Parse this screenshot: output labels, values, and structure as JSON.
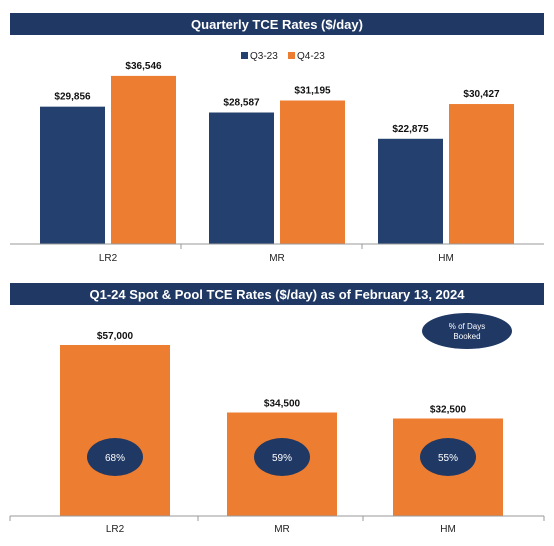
{
  "chart_data": [
    {
      "type": "bar",
      "title": "Quarterly TCE Rates ($/day)",
      "categories": [
        "LR2",
        "MR",
        "HM"
      ],
      "series": [
        {
          "name": "Q3-23",
          "values": [
            29856,
            28587,
            22875
          ],
          "labels": [
            "$29,856",
            "$28,587",
            "$22,875"
          ],
          "color": "#24406e"
        },
        {
          "name": "Q4-23",
          "values": [
            36546,
            31195,
            30427
          ],
          "labels": [
            "$36,546",
            "$31,195",
            "$30,427"
          ],
          "color": "#ed7d31"
        }
      ],
      "ylim": [
        0,
        40000
      ],
      "legend": "top-center",
      "grid": false
    },
    {
      "type": "bar",
      "title": "Q1-24 Spot & Pool TCE Rates ($/day) as of February 13, 2024",
      "categories": [
        "LR2",
        "MR",
        "HM"
      ],
      "values": [
        57000,
        34500,
        32500
      ],
      "labels": [
        "$57,000",
        "$34,500",
        "$32,500"
      ],
      "color": "#ed7d31",
      "days_booked_pct": [
        "68%",
        "59%",
        "55%"
      ],
      "days_booked_legend": [
        "% of Days",
        "Booked"
      ],
      "ylim": [
        0,
        62000
      ],
      "grid": false
    }
  ],
  "colors": {
    "banner": "#1f3864",
    "ellipse": "#1f3864",
    "axis": "#999999"
  }
}
